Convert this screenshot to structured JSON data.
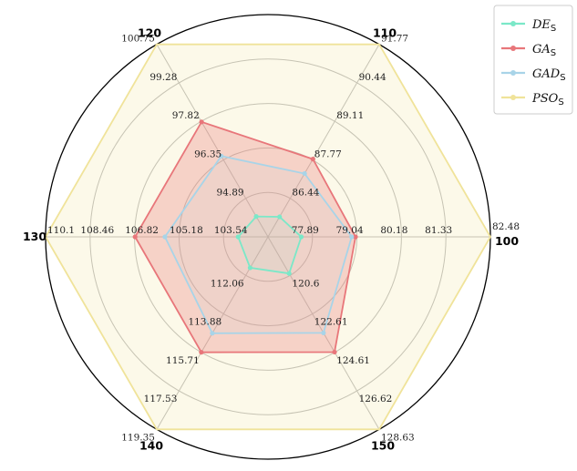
{
  "chart_data": {
    "type": "radar",
    "title": "",
    "grid": true,
    "legend_position": "top-right",
    "axes": [
      {
        "label": "100",
        "ticks": [
          "77.89",
          "79.04",
          "80.18",
          "81.33",
          "82.48"
        ]
      },
      {
        "label": "110",
        "ticks": [
          "86.44",
          "87.77",
          "89.11",
          "90.44",
          "91.77"
        ]
      },
      {
        "label": "120",
        "ticks": [
          "94.89",
          "96.35",
          "97.82",
          "99.28",
          "100.75"
        ]
      },
      {
        "label": "130",
        "ticks": [
          "103.54",
          "105.18",
          "106.82",
          "108.46",
          "110.1"
        ]
      },
      {
        "label": "140",
        "ticks": [
          "112.06",
          "113.88",
          "115.71",
          "117.53",
          "119.35"
        ]
      },
      {
        "label": "150",
        "ticks": [
          "120.6",
          "122.61",
          "124.61",
          "126.62",
          "128.63"
        ]
      }
    ],
    "series": [
      {
        "name": "DE",
        "subscript": "S",
        "color": "#7be8c8",
        "fill": false,
        "values": [
          77.6,
          85.8,
          94.2,
          103.0,
          111.7,
          120.5
        ]
      },
      {
        "name": "GA",
        "subscript": "S",
        "color": "#e8767a",
        "fill": true,
        "values": [
          79.0,
          87.8,
          97.8,
          106.8,
          115.7,
          124.6
        ]
      },
      {
        "name": "GAD",
        "subscript": "S",
        "color": "#a8d4e8",
        "fill": false,
        "values": [
          78.9,
          87.3,
          96.5,
          105.7,
          114.8,
          123.6
        ]
      },
      {
        "name": "PSO",
        "subscript": "S",
        "color": "#f0e39a",
        "fill": true,
        "values": [
          82.48,
          91.77,
          100.75,
          110.1,
          119.35,
          128.63
        ]
      }
    ]
  }
}
